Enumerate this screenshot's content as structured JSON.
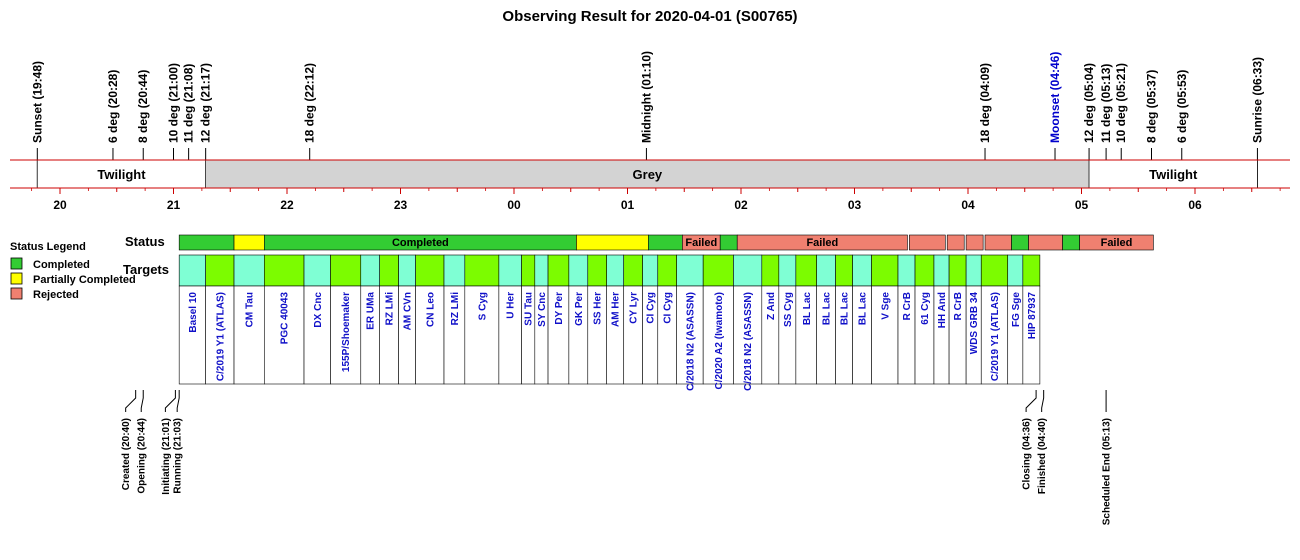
{
  "chart_data": {
    "type": "timeline",
    "title": "Observing Result for 2020-04-01 (S00765)",
    "colors": {
      "completed": "#33cc33",
      "partial": "#ffff00",
      "rejected": "#f08070",
      "target_a": "#7cfc00",
      "target_b": "#7fffd4",
      "grey": "#d3d3d3",
      "event_label": "#000000",
      "moon_label": "#0000cc",
      "red_line": "#cc0000",
      "target_label": "#1010c8"
    },
    "time_events": [
      {
        "label": "Sunset (19:48)",
        "t": "19:48",
        "color": "black"
      },
      {
        "label": "6 deg (20:28)",
        "t": "20:28",
        "color": "black"
      },
      {
        "label": "8 deg (20:44)",
        "t": "20:44",
        "color": "black"
      },
      {
        "label": "10 deg (21:00)",
        "t": "21:00",
        "color": "black"
      },
      {
        "label": "11 deg (21:08)",
        "t": "21:08",
        "color": "black"
      },
      {
        "label": "12 deg (21:17)",
        "t": "21:17",
        "color": "black"
      },
      {
        "label": "18 deg (22:12)",
        "t": "22:12",
        "color": "black"
      },
      {
        "label": "Midnight (01:10)",
        "t": "01:10",
        "color": "black"
      },
      {
        "label": "18 deg (04:09)",
        "t": "04:09",
        "color": "black"
      },
      {
        "label": "Moonset (04:46)",
        "t": "04:46",
        "color": "blue"
      },
      {
        "label": "12 deg (05:04)",
        "t": "05:04",
        "color": "black"
      },
      {
        "label": "11 deg (05:13)",
        "t": "05:13",
        "color": "black"
      },
      {
        "label": "10 deg (05:21)",
        "t": "05:21",
        "color": "black"
      },
      {
        "label": "8 deg (05:37)",
        "t": "05:37",
        "color": "black"
      },
      {
        "label": "6 deg (05:53)",
        "t": "05:53",
        "color": "black"
      },
      {
        "label": "Sunrise (06:33)",
        "t": "06:33",
        "color": "black"
      }
    ],
    "bands": [
      {
        "label": "Twilight",
        "start": "19:48",
        "end": "21:17",
        "fill": "white"
      },
      {
        "label": "Grey",
        "start": "21:17",
        "end": "05:04",
        "fill": "grey"
      },
      {
        "label": "Twilight",
        "start": "05:04",
        "end": "06:33",
        "fill": "white"
      }
    ],
    "hour_ticks": [
      "20",
      "21",
      "22",
      "23",
      "00",
      "01",
      "02",
      "03",
      "04",
      "05",
      "06"
    ],
    "row_labels": {
      "status": "Status",
      "targets": "Targets"
    },
    "legend": {
      "title": "Status Legend",
      "items": [
        {
          "label": "Completed",
          "status": "completed"
        },
        {
          "label": "Partially Completed",
          "status": "partial"
        },
        {
          "label": "Rejected",
          "status": "rejected"
        }
      ]
    },
    "status_segments": [
      {
        "start": "21:03",
        "end": "21:32",
        "status": "completed",
        "label": ""
      },
      {
        "start": "21:32",
        "end": "21:48",
        "status": "partial",
        "label": ""
      },
      {
        "start": "21:48",
        "end": "00:33",
        "status": "completed",
        "label": "Completed"
      },
      {
        "start": "00:33",
        "end": "01:11",
        "status": "partial",
        "label": ""
      },
      {
        "start": "01:11",
        "end": "01:29",
        "status": "completed",
        "label": ""
      },
      {
        "start": "01:29",
        "end": "01:49",
        "status": "rejected",
        "label": "Failed"
      },
      {
        "start": "01:49",
        "end": "01:58",
        "status": "completed",
        "label": ""
      },
      {
        "start": "01:58",
        "end": "03:28",
        "status": "rejected",
        "label": "Failed"
      },
      {
        "start": "03:29",
        "end": "03:48",
        "status": "rejected",
        "label": ""
      },
      {
        "start": "03:49",
        "end": "03:58",
        "status": "rejected",
        "label": ""
      },
      {
        "start": "03:59",
        "end": "04:08",
        "status": "rejected",
        "label": ""
      },
      {
        "start": "04:09",
        "end": "04:23",
        "status": "rejected",
        "label": ""
      },
      {
        "start": "04:23",
        "end": "04:32",
        "status": "completed",
        "label": ""
      },
      {
        "start": "04:32",
        "end": "04:50",
        "status": "rejected",
        "label": ""
      },
      {
        "start": "04:50",
        "end": "04:59",
        "status": "completed",
        "label": ""
      },
      {
        "start": "04:59",
        "end": "05:38",
        "status": "rejected",
        "label": "Failed"
      }
    ],
    "targets": [
      {
        "name": "Basel 10",
        "start": "21:03",
        "end": "21:17",
        "fill": "b"
      },
      {
        "name": "C/2019 Y1 (ATLAS)",
        "start": "21:17",
        "end": "21:32",
        "fill": "a"
      },
      {
        "name": "CM Tau",
        "start": "21:32",
        "end": "21:48",
        "fill": "b"
      },
      {
        "name": "PGC 40043",
        "start": "21:48",
        "end": "22:09",
        "fill": "a"
      },
      {
        "name": "DX Cnc",
        "start": "22:09",
        "end": "22:23",
        "fill": "b"
      },
      {
        "name": "155P/Shoemaker",
        "start": "22:23",
        "end": "22:39",
        "fill": "a"
      },
      {
        "name": "ER UMa",
        "start": "22:39",
        "end": "22:49",
        "fill": "b"
      },
      {
        "name": "RZ LMi",
        "start": "22:49",
        "end": "22:59",
        "fill": "a"
      },
      {
        "name": "AM CVn",
        "start": "22:59",
        "end": "23:08",
        "fill": "b"
      },
      {
        "name": "CN Leo",
        "start": "23:08",
        "end": "23:23",
        "fill": "a"
      },
      {
        "name": "RZ LMi",
        "start": "23:23",
        "end": "23:34",
        "fill": "b"
      },
      {
        "name": "S Cyg",
        "start": "23:34",
        "end": "23:52",
        "fill": "a"
      },
      {
        "name": "U Her",
        "start": "23:52",
        "end": "00:04",
        "fill": "b"
      },
      {
        "name": "SU Tau",
        "start": "00:04",
        "end": "00:11",
        "fill": "a"
      },
      {
        "name": "SY Cnc",
        "start": "00:11",
        "end": "00:18",
        "fill": "b"
      },
      {
        "name": "DY Per",
        "start": "00:18",
        "end": "00:29",
        "fill": "a"
      },
      {
        "name": "GK Per",
        "start": "00:29",
        "end": "00:39",
        "fill": "b"
      },
      {
        "name": "SS Her",
        "start": "00:39",
        "end": "00:49",
        "fill": "a"
      },
      {
        "name": "AM Her",
        "start": "00:49",
        "end": "00:58",
        "fill": "b"
      },
      {
        "name": "CY Lyr",
        "start": "00:58",
        "end": "01:08",
        "fill": "a"
      },
      {
        "name": "CI Cyg",
        "start": "01:08",
        "end": "01:16",
        "fill": "b"
      },
      {
        "name": "CI Cyg",
        "start": "01:16",
        "end": "01:26",
        "fill": "a"
      },
      {
        "name": "C/2018 N2 (ASASSN)",
        "start": "01:26",
        "end": "01:40",
        "fill": "b"
      },
      {
        "name": "C/2020 A2 (Iwamoto)",
        "start": "01:40",
        "end": "01:56",
        "fill": "a"
      },
      {
        "name": "C/2018 N2 (ASASSN)",
        "start": "01:56",
        "end": "02:11",
        "fill": "b"
      },
      {
        "name": "Z And",
        "start": "02:11",
        "end": "02:20",
        "fill": "a"
      },
      {
        "name": "SS Cyg",
        "start": "02:20",
        "end": "02:29",
        "fill": "b"
      },
      {
        "name": "BL Lac",
        "start": "02:29",
        "end": "02:40",
        "fill": "a"
      },
      {
        "name": "BL Lac",
        "start": "02:40",
        "end": "02:50",
        "fill": "b"
      },
      {
        "name": "BL Lac",
        "start": "02:50",
        "end": "02:59",
        "fill": "a"
      },
      {
        "name": "BL Lac",
        "start": "02:59",
        "end": "03:09",
        "fill": "b"
      },
      {
        "name": "V Sge",
        "start": "03:09",
        "end": "03:23",
        "fill": "a"
      },
      {
        "name": "R CrB",
        "start": "03:23",
        "end": "03:32",
        "fill": "b"
      },
      {
        "name": "61 Cyg",
        "start": "03:32",
        "end": "03:42",
        "fill": "a"
      },
      {
        "name": "HH And",
        "start": "03:42",
        "end": "03:50",
        "fill": "b"
      },
      {
        "name": "R CrB",
        "start": "03:50",
        "end": "03:59",
        "fill": "a"
      },
      {
        "name": "WDS GRB 34",
        "start": "03:59",
        "end": "04:07",
        "fill": "b"
      },
      {
        "name": "C/2019 Y1 (ATLAS)",
        "start": "04:07",
        "end": "04:21",
        "fill": "a"
      },
      {
        "name": "FG Sge",
        "start": "04:21",
        "end": "04:29",
        "fill": "b"
      },
      {
        "name": "HIP 87937",
        "start": "04:29",
        "end": "04:38",
        "fill": "a"
      }
    ],
    "process_events": [
      {
        "label": "Created (20:40)",
        "t": "20:40"
      },
      {
        "label": "Opening (20:44)",
        "t": "20:44"
      },
      {
        "label": "Initiating (21:01)",
        "t": "21:01"
      },
      {
        "label": "Running (21:03)",
        "t": "21:03"
      },
      {
        "label": "Closing (04:36)",
        "t": "04:36"
      },
      {
        "label": "Finished (04:40)",
        "t": "04:40"
      },
      {
        "label": "Scheduled End (05:13)",
        "t": "05:13"
      }
    ]
  }
}
